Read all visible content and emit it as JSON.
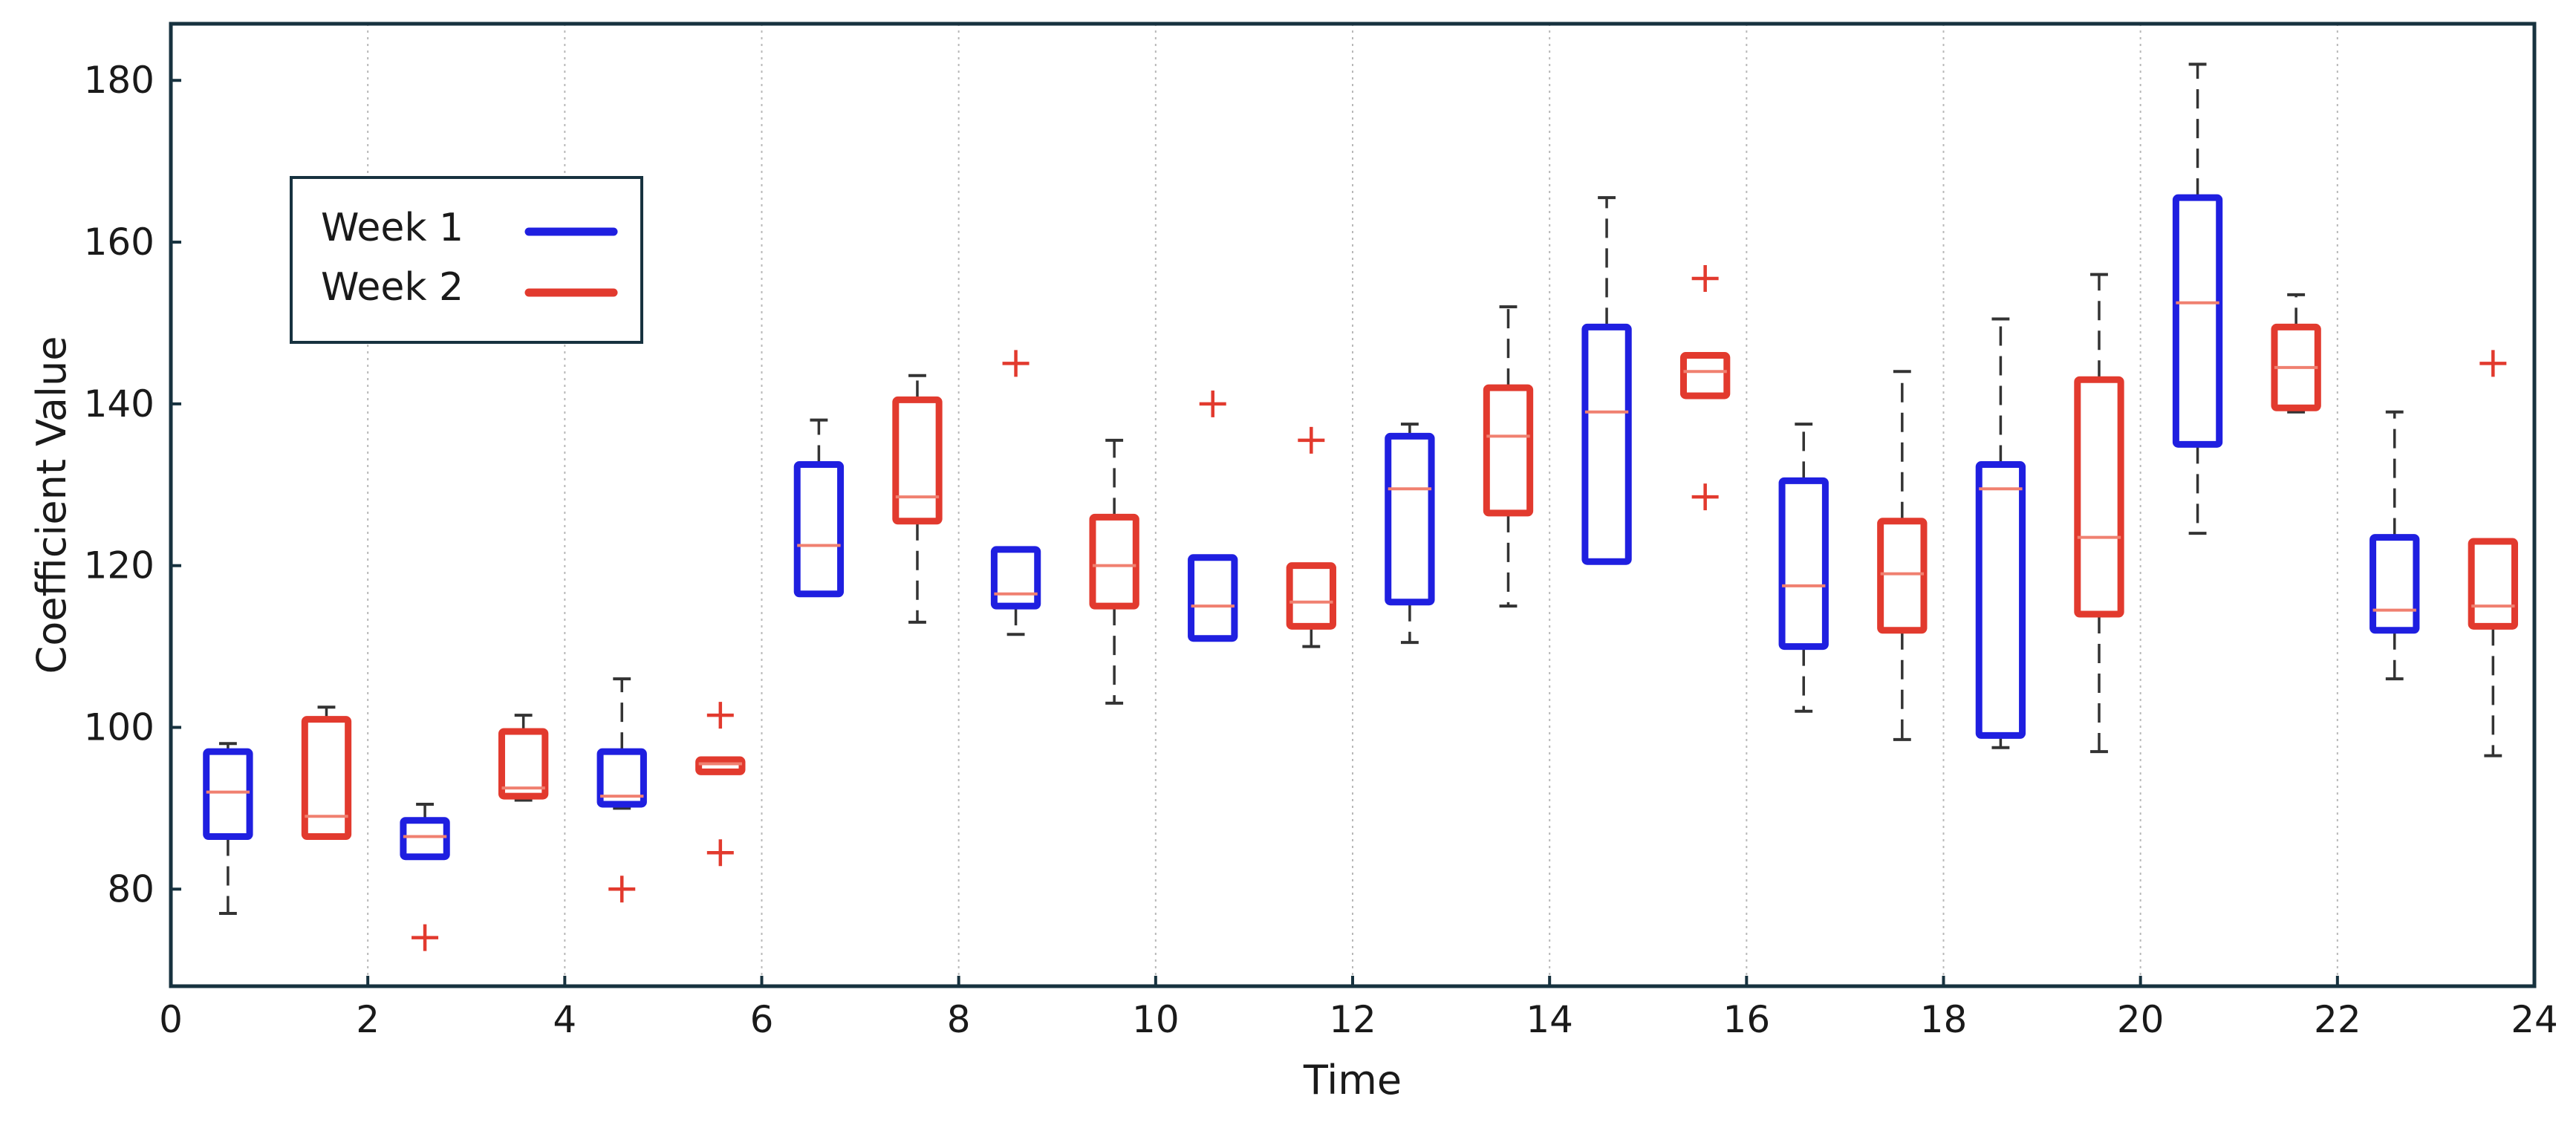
{
  "chart_data": {
    "type": "box",
    "xlabel": "Time",
    "ylabel": "Coefficient Value",
    "xlim": [
      0,
      24
    ],
    "ylim": [
      68,
      187
    ],
    "xticks": [
      "0",
      "2",
      "4",
      "6",
      "8",
      "10",
      "12",
      "14",
      "16",
      "18",
      "20",
      "22",
      "24"
    ],
    "yticks": [
      "80",
      "100",
      "120",
      "140",
      "160",
      "180"
    ],
    "grid": "vertical dotted at each x tick",
    "legend": {
      "placement": "upper-left"
    },
    "colors": {
      "week1": "#1f1fe0",
      "week2": "#e23a2e",
      "median": "#f08070",
      "whisker": "#333333",
      "frame": "#17323f"
    },
    "series": [
      {
        "name": "Week 1",
        "color": "#1f1fe0",
        "boxes": [
          {
            "x": 0.58,
            "whislo": 77,
            "q1": 86.5,
            "med": 92,
            "q3": 97,
            "whishi": 98,
            "fliers": []
          },
          {
            "x": 2.58,
            "whislo": 84,
            "q1": 84,
            "med": 86.5,
            "q3": 88.5,
            "whishi": 90.5,
            "fliers": []
          },
          {
            "x": 4.58,
            "whislo": 90,
            "q1": 90.5,
            "med": 91.5,
            "q3": 97,
            "whishi": 106,
            "fliers": []
          },
          {
            "x": 6.58,
            "whislo": 116.5,
            "q1": 116.5,
            "med": 122.5,
            "q3": 132.5,
            "whishi": 138,
            "fliers": []
          },
          {
            "x": 8.58,
            "whislo": 111.5,
            "q1": 115,
            "med": 116.5,
            "q3": 122,
            "whishi": 122,
            "fliers": []
          },
          {
            "x": 10.58,
            "whislo": 111,
            "q1": 111,
            "med": 115,
            "q3": 121,
            "whishi": 121,
            "fliers": []
          },
          {
            "x": 12.58,
            "whislo": 110.5,
            "q1": 115.5,
            "med": 129.5,
            "q3": 136,
            "whishi": 137.5,
            "fliers": []
          },
          {
            "x": 14.58,
            "whislo": 120.5,
            "q1": 120.5,
            "med": 139,
            "q3": 149.5,
            "whishi": 165.5,
            "fliers": []
          },
          {
            "x": 16.58,
            "whislo": 102,
            "q1": 110,
            "med": 117.5,
            "q3": 130.5,
            "whishi": 137.5,
            "fliers": []
          },
          {
            "x": 18.58,
            "whislo": 97.5,
            "q1": 99,
            "med": 129.5,
            "q3": 132.5,
            "whishi": 150.5,
            "fliers": []
          },
          {
            "x": 20.58,
            "whislo": 124,
            "q1": 135,
            "med": 152.5,
            "q3": 165.5,
            "whishi": 182,
            "fliers": []
          },
          {
            "x": 22.58,
            "whislo": 106,
            "q1": 112,
            "med": 114.5,
            "q3": 123.5,
            "whishi": 139,
            "fliers": []
          }
        ]
      },
      {
        "name": "Week 2",
        "color": "#e23a2e",
        "boxes": [
          {
            "x": 1.58,
            "whislo": 86.5,
            "q1": 86.5,
            "med": 89,
            "q3": 101,
            "whishi": 102.5,
            "fliers": []
          },
          {
            "x": 3.58,
            "whislo": 91,
            "q1": 91.5,
            "med": 92.5,
            "q3": 99.5,
            "whishi": 101.5,
            "fliers": []
          },
          {
            "x": 5.58,
            "whislo": 94.5,
            "q1": 94.5,
            "med": 95.5,
            "q3": 96,
            "whishi": 96,
            "fliers": [
              101.5,
              84.5
            ]
          },
          {
            "x": 7.58,
            "whislo": 113,
            "q1": 125.5,
            "med": 128.5,
            "q3": 140.5,
            "whishi": 143.5,
            "fliers": []
          },
          {
            "x": 9.58,
            "whislo": 103,
            "q1": 115,
            "med": 120,
            "q3": 126,
            "whishi": 135.5,
            "fliers": []
          },
          {
            "x": 11.58,
            "whislo": 110,
            "q1": 112.5,
            "med": 115.5,
            "q3": 120,
            "whishi": 120,
            "fliers": []
          },
          {
            "x": 13.58,
            "whislo": 115,
            "q1": 126.5,
            "med": 136,
            "q3": 142,
            "whishi": 152,
            "fliers": []
          },
          {
            "x": 15.58,
            "whislo": 141,
            "q1": 141,
            "med": 144,
            "q3": 146,
            "whishi": 146,
            "fliers": [
              155.5,
              128.5
            ]
          },
          {
            "x": 17.58,
            "whislo": 98.5,
            "q1": 112,
            "med": 119,
            "q3": 125.5,
            "whishi": 144,
            "fliers": []
          },
          {
            "x": 19.58,
            "whislo": 97,
            "q1": 114,
            "med": 123.5,
            "q3": 143,
            "whishi": 156,
            "fliers": []
          },
          {
            "x": 21.58,
            "whislo": 139,
            "q1": 139.5,
            "med": 144.5,
            "q3": 149.5,
            "whishi": 153.5,
            "fliers": []
          },
          {
            "x": 23.58,
            "whislo": 96.5,
            "q1": 112.5,
            "med": 115,
            "q3": 123,
            "whishi": 123,
            "fliers": []
          }
        ]
      }
    ],
    "extra_fliers": [
      {
        "x": 2.58,
        "y": 74,
        "color": "#e23a2e"
      },
      {
        "x": 4.58,
        "y": 80,
        "color": "#e23a2e"
      },
      {
        "x": 8.58,
        "y": 145,
        "color": "#e23a2e"
      },
      {
        "x": 10.58,
        "y": 140,
        "color": "#e23a2e"
      },
      {
        "x": 11.58,
        "y": 135.5,
        "color": "#e23a2e"
      },
      {
        "x": 23.58,
        "y": 145,
        "color": "#e23a2e"
      }
    ]
  }
}
